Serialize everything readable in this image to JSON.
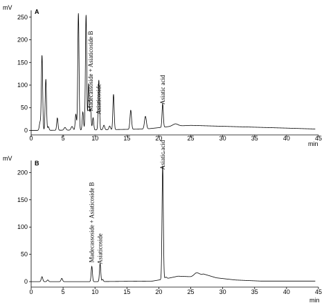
{
  "chart_data": [
    {
      "type": "line",
      "panel_label": "A",
      "ylabel": "mV",
      "xlabel": "min",
      "xlim": [
        0,
        45
      ],
      "ylim": [
        -10,
        265
      ],
      "x_ticks": [
        0,
        5,
        10,
        15,
        20,
        25,
        30,
        35,
        40,
        45
      ],
      "y_ticks": [
        0,
        50,
        100,
        150,
        200,
        250
      ],
      "annotations": [
        {
          "text": "Madecassoside + Asiaticoside B",
          "x": 9.3,
          "y": 42
        },
        {
          "text": "Asiaticoside",
          "x": 10.6,
          "y": 35
        },
        {
          "text": "Asiatic acid",
          "x": 20.6,
          "y": 57
        }
      ],
      "baseline": [
        [
          0,
          0
        ],
        [
          1,
          0
        ],
        [
          10,
          1
        ],
        [
          18,
          3
        ],
        [
          22,
          9
        ],
        [
          25,
          11
        ],
        [
          30,
          9
        ],
        [
          35,
          7
        ],
        [
          40,
          5
        ],
        [
          44.5,
          3
        ]
      ],
      "peaks": [
        {
          "t": 1.4,
          "h": 18,
          "w": 0.12
        },
        {
          "t": 1.7,
          "h": 165,
          "w": 0.1
        },
        {
          "t": 2.3,
          "h": 113,
          "w": 0.1
        },
        {
          "t": 2.7,
          "h": 8,
          "w": 0.1
        },
        {
          "t": 4.1,
          "h": 27,
          "w": 0.1
        },
        {
          "t": 5.3,
          "h": 6,
          "w": 0.15
        },
        {
          "t": 6.4,
          "h": 8,
          "w": 0.15
        },
        {
          "t": 7.0,
          "h": 35,
          "w": 0.1
        },
        {
          "t": 7.4,
          "h": 258,
          "w": 0.1
        },
        {
          "t": 8.1,
          "h": 40,
          "w": 0.1
        },
        {
          "t": 8.6,
          "h": 254,
          "w": 0.1
        },
        {
          "t": 9.0,
          "h": 102,
          "w": 0.1
        },
        {
          "t": 9.3,
          "h": 45,
          "w": 0.1
        },
        {
          "t": 9.7,
          "h": 27,
          "w": 0.1
        },
        {
          "t": 10.6,
          "h": 110,
          "w": 0.1
        },
        {
          "t": 11.4,
          "h": 10,
          "w": 0.12
        },
        {
          "t": 12.3,
          "h": 8,
          "w": 0.12
        },
        {
          "t": 12.9,
          "h": 78,
          "w": 0.1
        },
        {
          "t": 15.6,
          "h": 42,
          "w": 0.12
        },
        {
          "t": 17.9,
          "h": 28,
          "w": 0.15
        },
        {
          "t": 20.6,
          "h": 52,
          "w": 0.1
        },
        {
          "t": 22.6,
          "h": 5,
          "w": 0.4
        }
      ]
    },
    {
      "type": "line",
      "panel_label": "B",
      "ylabel": "mV",
      "xlabel": "min",
      "xlim": [
        0,
        45
      ],
      "ylim": [
        -10,
        222
      ],
      "x_ticks": [
        0,
        5,
        10,
        15,
        20,
        25,
        30,
        35,
        40,
        45
      ],
      "y_ticks": [
        0,
        50,
        100,
        150,
        200
      ],
      "annotations": [
        {
          "text": "Madecassoside + Asiaticoside B",
          "x": 9.5,
          "y": 35
        },
        {
          "text": "Asiaticoside",
          "x": 10.8,
          "y": 32
        },
        {
          "text": "Asiatic acid",
          "x": 20.6,
          "y": 205
        }
      ],
      "baseline": [
        [
          0,
          0
        ],
        [
          10,
          0
        ],
        [
          19,
          1
        ],
        [
          21,
          5
        ],
        [
          23,
          10
        ],
        [
          25,
          9
        ],
        [
          27,
          14
        ],
        [
          29,
          7
        ],
        [
          32,
          3
        ],
        [
          36,
          1
        ],
        [
          44.5,
          1
        ]
      ],
      "peaks": [
        {
          "t": 1.7,
          "h": 9,
          "w": 0.12
        },
        {
          "t": 2.6,
          "h": 3,
          "w": 0.12
        },
        {
          "t": 4.8,
          "h": 6,
          "w": 0.12
        },
        {
          "t": 9.5,
          "h": 28,
          "w": 0.1
        },
        {
          "t": 10.8,
          "h": 33,
          "w": 0.1
        },
        {
          "t": 11.2,
          "h": 4,
          "w": 0.1
        },
        {
          "t": 20.6,
          "h": 208,
          "w": 0.1
        },
        {
          "t": 21.1,
          "h": 3,
          "w": 0.15
        },
        {
          "t": 25.9,
          "h": 5,
          "w": 0.35
        }
      ]
    }
  ]
}
